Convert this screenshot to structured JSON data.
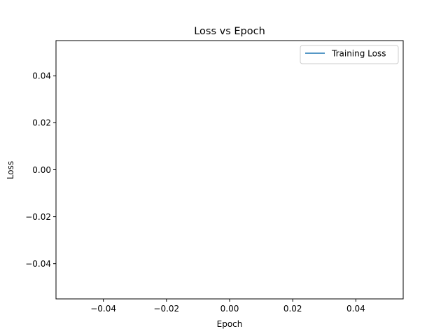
{
  "chart_data": {
    "type": "line",
    "title": "Loss vs Epoch",
    "xlabel": "Epoch",
    "ylabel": "Loss",
    "xlim": [
      -0.055,
      0.055
    ],
    "ylim": [
      -0.055,
      0.055
    ],
    "xticks": [
      -0.04,
      -0.02,
      0.0,
      0.02,
      0.04
    ],
    "yticks": [
      -0.04,
      -0.02,
      0.0,
      0.02,
      0.04
    ],
    "xtick_labels": [
      "−0.04",
      "−0.02",
      "0.00",
      "0.02",
      "0.04"
    ],
    "ytick_labels": [
      "−0.04",
      "−0.02",
      "0.00",
      "0.02",
      "0.04"
    ],
    "grid": false,
    "legend_position": "top-right",
    "series": [
      {
        "name": "Training Loss",
        "color": "#1f77b4",
        "x": [],
        "y": []
      }
    ]
  }
}
